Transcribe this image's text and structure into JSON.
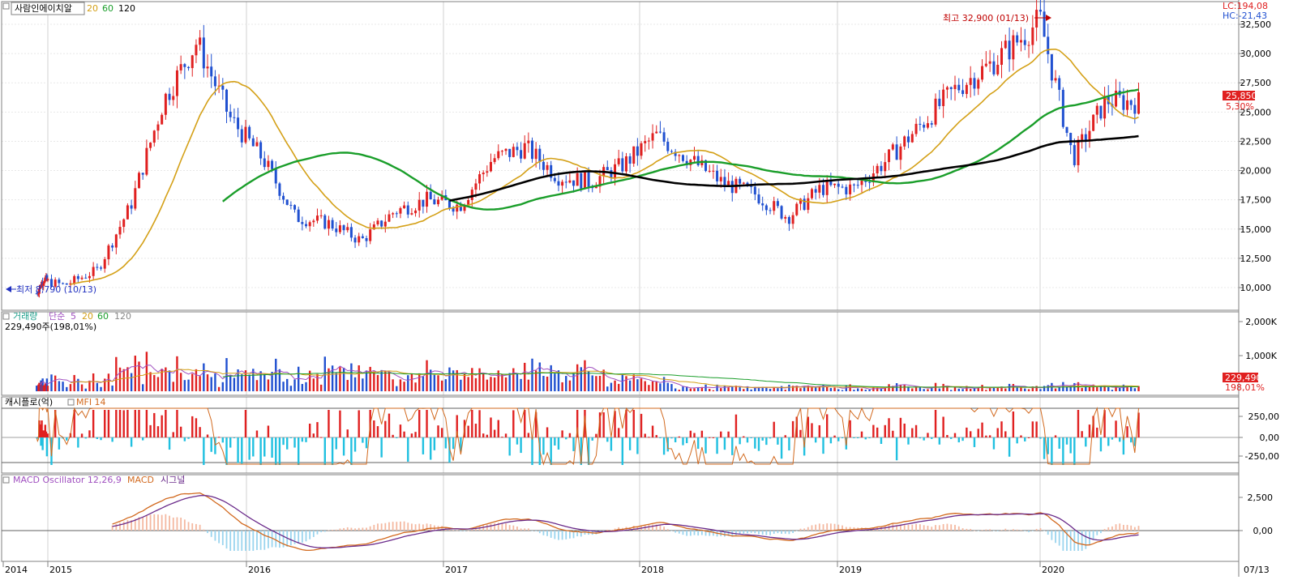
{
  "price_panel": {
    "title": "사람인에이치알",
    "ma_labels": [
      "20",
      "60",
      "120"
    ],
    "ma_colors": [
      "#d4a017",
      "#1a9e2a",
      "#000000"
    ],
    "lc": "LC:194,08",
    "hc": "HC:-21,43",
    "high_note": "최고 32,900 (01/13)",
    "low_note": "최저 8,790 (10/13)",
    "last_price": "25,850",
    "last_pct": "5,30%",
    "yticks": [
      "10,000",
      "12,500",
      "15,000",
      "17,500",
      "20,000",
      "22,500",
      "25,000",
      "27,500",
      "30,000",
      "32,500"
    ]
  },
  "volume_panel": {
    "title": "거래량",
    "ma_prefix": "단순",
    "ma_labels": [
      "5",
      "20",
      "60",
      "120"
    ],
    "value": "229,490주(198,01%)",
    "last_value": "229,490",
    "last_pct": "198,01%",
    "yticks": [
      "1,000K",
      "2,000K"
    ]
  },
  "cash_panel": {
    "title": "캐시플로(억)",
    "mfi_label": "MFI 14",
    "yticks": [
      "250,00",
      "0,00",
      "-250,00"
    ]
  },
  "macd_panel": {
    "title": "MACD Oscillator 12,26,9",
    "macd_label": "MACD",
    "signal_label": "시그널",
    "yticks": [
      "2,500",
      "0,00"
    ]
  },
  "x_axis": {
    "labels": [
      "2014",
      "2015",
      "2016",
      "2017",
      "2018",
      "2019",
      "2020"
    ],
    "right_label": "07/13"
  },
  "chart_data": {
    "type": "candlestick",
    "price_ylim": [
      8000,
      33500
    ],
    "x_years": [
      "2014",
      "2015",
      "2016",
      "2017",
      "2018",
      "2019",
      "2020"
    ],
    "price_path": [
      [
        "2014-10",
        9500
      ],
      [
        "2014-12",
        10800
      ],
      [
        "2015-02",
        10200
      ],
      [
        "2015-04",
        11500
      ],
      [
        "2015-06",
        17000
      ],
      [
        "2015-08",
        26000
      ],
      [
        "2015-10",
        31000
      ],
      [
        "2015-12",
        24500
      ],
      [
        "2016-02",
        21000
      ],
      [
        "2016-04",
        16000
      ],
      [
        "2016-06",
        15500
      ],
      [
        "2016-08",
        14000
      ],
      [
        "2016-10",
        16500
      ],
      [
        "2016-12",
        17500
      ],
      [
        "2017-02",
        17000
      ],
      [
        "2017-04",
        21000
      ],
      [
        "2017-06",
        22000
      ],
      [
        "2017-08",
        19500
      ],
      [
        "2017-10",
        19000
      ],
      [
        "2017-12",
        20500
      ],
      [
        "2018-02",
        23000
      ],
      [
        "2018-04",
        21000
      ],
      [
        "2018-06",
        19000
      ],
      [
        "2018-08",
        18000
      ],
      [
        "2018-10",
        16000
      ],
      [
        "2018-12",
        18500
      ],
      [
        "2019-02",
        18500
      ],
      [
        "2019-04",
        21000
      ],
      [
        "2019-06",
        24000
      ],
      [
        "2019-08",
        27000
      ],
      [
        "2019-10",
        29000
      ],
      [
        "2019-12",
        31500
      ],
      [
        "2020-01",
        32900
      ],
      [
        "2020-03",
        21000
      ],
      [
        "2020-05",
        26000
      ],
      [
        "2020-07",
        25850
      ]
    ],
    "high": {
      "date": "01/13",
      "value": 32900
    },
    "low": {
      "date": "10/13",
      "value": 8790
    },
    "last_close": 25850,
    "last_change_pct": 5.3,
    "moving_averages": [
      20,
      60,
      120
    ],
    "volume_ylim": [
      0,
      2100000
    ],
    "volume_last": 229490,
    "volume_last_pct": 198.01,
    "cash_ylim": [
      -300,
      350
    ],
    "macd_ylim": [
      -1500,
      4000
    ]
  }
}
